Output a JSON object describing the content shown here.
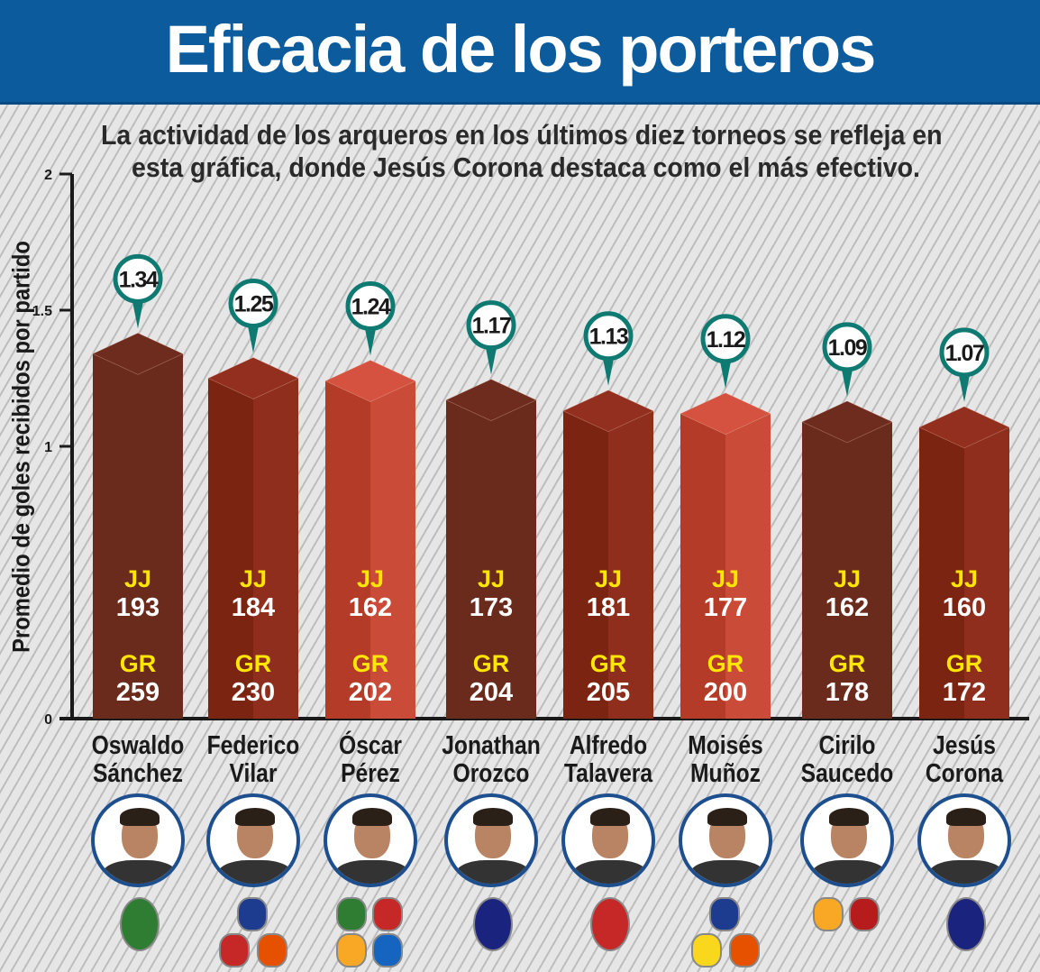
{
  "header": {
    "title": "Eficacia de los porteros"
  },
  "subtitle": [
    "La actividad de los arqueros en los últimos diez torneos se refleja en",
    "esta gráfica, donde Jesús Corona destaca como el más efectivo."
  ],
  "chart_data": {
    "type": "bar",
    "ylabel": "Promedio de goles recibidos por partido",
    "ylim": [
      0,
      2
    ],
    "yticks": [
      "0",
      "1",
      "1.5",
      "2"
    ],
    "stat_labels": {
      "jj": "JJ",
      "gr": "GR"
    },
    "categories": [
      {
        "first": "Oswaldo",
        "last": "Sánchez"
      },
      {
        "first": "Federico",
        "last": "Vilar"
      },
      {
        "first": "Óscar",
        "last": "Pérez"
      },
      {
        "first": "Jonathan",
        "last": "Orozco"
      },
      {
        "first": "Alfredo",
        "last": "Talavera"
      },
      {
        "first": "Moisés",
        "last": "Muñoz"
      },
      {
        "first": "Cirilo",
        "last": "Saucedo"
      },
      {
        "first": "Jesús",
        "last": "Corona"
      }
    ],
    "values": [
      1.34,
      1.25,
      1.24,
      1.17,
      1.13,
      1.12,
      1.09,
      1.07
    ],
    "value_labels": [
      "1.34",
      "1.25",
      "1.24",
      "1.17",
      "1.13",
      "1.12",
      "1.09",
      "1.07"
    ],
    "jj": [
      "193",
      "184",
      "162",
      "173",
      "181",
      "177",
      "162",
      "160"
    ],
    "gr": [
      "259",
      "230",
      "202",
      "204",
      "205",
      "200",
      "178",
      "172"
    ]
  },
  "colors": {
    "header": "#0b5b9d",
    "pin": "#0f7a72",
    "label_yellow": "#ffe600",
    "photo_border": "#1d4f8f",
    "bar_shades": [
      [
        "#6a2a1c",
        "#6a2a1c",
        "#6e2c1e"
      ],
      [
        "#7c2412",
        "#8f2e1c",
        "#922f1f"
      ],
      [
        "#b33b28",
        "#c94b38",
        "#d4523f"
      ]
    ],
    "bar_shade_index": [
      0,
      1,
      2,
      0,
      1,
      2,
      0,
      1
    ],
    "club_logo_colors": [
      [
        "#2e7d32"
      ],
      [
        "#1d3b8f",
        "#c62828",
        "#e65100"
      ],
      [
        "#2e7d32",
        "#c62828",
        "#f9a825",
        "#1565c0"
      ],
      [
        "#1a237e"
      ],
      [
        "#c62828"
      ],
      [
        "#1d3b8f",
        "#f9d71c",
        "#e65100"
      ],
      [
        "#f9a825",
        "#b71c1c"
      ],
      [
        "#1a237e"
      ]
    ]
  }
}
